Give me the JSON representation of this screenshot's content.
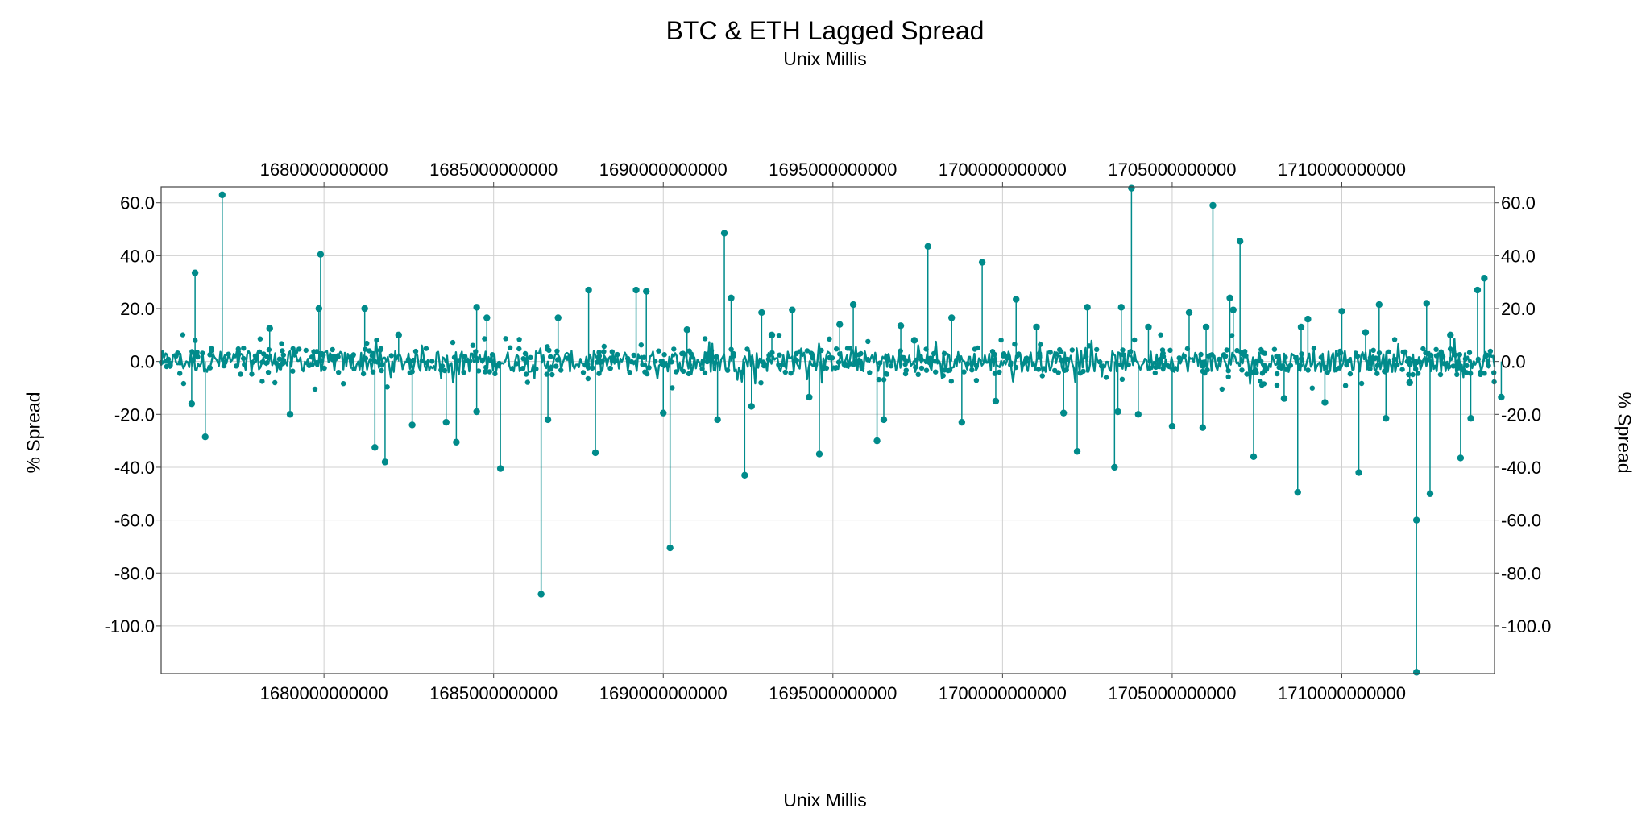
{
  "chart_data": {
    "type": "scatter",
    "title": "BTC & ETH Lagged Spread",
    "subtitle": "Unix Millis",
    "xlabel": "Unix Millis",
    "ylabel": "% Spread",
    "xlim": [
      1675200000000,
      1714500000000
    ],
    "ylim": [
      -118,
      66
    ],
    "x_ticks": [
      "1680000000000",
      "1685000000000",
      "1690000000000",
      "1695000000000",
      "1700000000000",
      "1705000000000",
      "1710000000000"
    ],
    "y_ticks": [
      "60.0",
      "40.0",
      "20.0",
      "0.0",
      "-20.0",
      "-40.0",
      "-60.0",
      "-80.0",
      "-100.0"
    ],
    "grid": true,
    "color": "#008b8b",
    "series": [
      {
        "noise_band": [
          -4,
          4
        ],
        "points": [
          {
            "x": 1676200000000,
            "y": 33.5
          },
          {
            "x": 1676500000000,
            "y": -28.5
          },
          {
            "x": 1677000000000,
            "y": 63.0
          },
          {
            "x": 1676100000000,
            "y": -16.0
          },
          {
            "x": 1678400000000,
            "y": 12.5
          },
          {
            "x": 1679000000000,
            "y": -20.0
          },
          {
            "x": 1679900000000,
            "y": 40.5
          },
          {
            "x": 1679850000000,
            "y": 20.0
          },
          {
            "x": 1681200000000,
            "y": 20.0
          },
          {
            "x": 1681500000000,
            "y": -32.5
          },
          {
            "x": 1681800000000,
            "y": -38.0
          },
          {
            "x": 1682200000000,
            "y": 10.0
          },
          {
            "x": 1682600000000,
            "y": -24.0
          },
          {
            "x": 1683600000000,
            "y": -23.0
          },
          {
            "x": 1683900000000,
            "y": -30.5
          },
          {
            "x": 1684500000000,
            "y": 20.5
          },
          {
            "x": 1684500000000,
            "y": -19.0
          },
          {
            "x": 1684800000000,
            "y": 16.5
          },
          {
            "x": 1685200000000,
            "y": -40.5
          },
          {
            "x": 1686400000000,
            "y": -88.0
          },
          {
            "x": 1686600000000,
            "y": -22.0
          },
          {
            "x": 1686900000000,
            "y": 16.5
          },
          {
            "x": 1687800000000,
            "y": 27.0
          },
          {
            "x": 1688000000000,
            "y": -34.5
          },
          {
            "x": 1689200000000,
            "y": 27.0
          },
          {
            "x": 1689500000000,
            "y": 26.5
          },
          {
            "x": 1690000000000,
            "y": -19.5
          },
          {
            "x": 1690200000000,
            "y": -70.5
          },
          {
            "x": 1690700000000,
            "y": 12.0
          },
          {
            "x": 1691600000000,
            "y": -22.0
          },
          {
            "x": 1691800000000,
            "y": 48.5
          },
          {
            "x": 1692000000000,
            "y": 24.0
          },
          {
            "x": 1692400000000,
            "y": -43.0
          },
          {
            "x": 1692600000000,
            "y": -17.0
          },
          {
            "x": 1692900000000,
            "y": 18.5
          },
          {
            "x": 1693200000000,
            "y": 10.0
          },
          {
            "x": 1693800000000,
            "y": 19.5
          },
          {
            "x": 1694300000000,
            "y": -13.5
          },
          {
            "x": 1694600000000,
            "y": -35.0
          },
          {
            "x": 1695200000000,
            "y": 14.0
          },
          {
            "x": 1695600000000,
            "y": 21.5
          },
          {
            "x": 1696300000000,
            "y": -30.0
          },
          {
            "x": 1696500000000,
            "y": -22.0
          },
          {
            "x": 1697000000000,
            "y": 13.5
          },
          {
            "x": 1697400000000,
            "y": 8.0
          },
          {
            "x": 1697800000000,
            "y": 43.5
          },
          {
            "x": 1698500000000,
            "y": 16.5
          },
          {
            "x": 1698800000000,
            "y": -23.0
          },
          {
            "x": 1699400000000,
            "y": 37.5
          },
          {
            "x": 1699800000000,
            "y": -15.0
          },
          {
            "x": 1700400000000,
            "y": 23.5
          },
          {
            "x": 1701000000000,
            "y": 13.0
          },
          {
            "x": 1701800000000,
            "y": -19.5
          },
          {
            "x": 1702200000000,
            "y": -34.0
          },
          {
            "x": 1702500000000,
            "y": 20.5
          },
          {
            "x": 1703300000000,
            "y": -40.0
          },
          {
            "x": 1703400000000,
            "y": -19.0
          },
          {
            "x": 1703500000000,
            "y": 20.5
          },
          {
            "x": 1703800000000,
            "y": 65.5
          },
          {
            "x": 1704000000000,
            "y": -20.0
          },
          {
            "x": 1704300000000,
            "y": 13.0
          },
          {
            "x": 1705000000000,
            "y": -24.5
          },
          {
            "x": 1705500000000,
            "y": 18.5
          },
          {
            "x": 1705900000000,
            "y": -25.0
          },
          {
            "x": 1706000000000,
            "y": 13.0
          },
          {
            "x": 1706200000000,
            "y": 59.0
          },
          {
            "x": 1706700000000,
            "y": 24.0
          },
          {
            "x": 1706800000000,
            "y": 19.5
          },
          {
            "x": 1707000000000,
            "y": 45.5
          },
          {
            "x": 1707400000000,
            "y": -36.0
          },
          {
            "x": 1708300000000,
            "y": -14.0
          },
          {
            "x": 1708700000000,
            "y": -49.5
          },
          {
            "x": 1708800000000,
            "y": 13.0
          },
          {
            "x": 1709000000000,
            "y": 16.0
          },
          {
            "x": 1709500000000,
            "y": -15.5
          },
          {
            "x": 1710000000000,
            "y": 19.0
          },
          {
            "x": 1710500000000,
            "y": -42.0
          },
          {
            "x": 1710700000000,
            "y": 11.0
          },
          {
            "x": 1711100000000,
            "y": 21.5
          },
          {
            "x": 1711300000000,
            "y": -21.5
          },
          {
            "x": 1712000000000,
            "y": -8.0
          },
          {
            "x": 1712200000000,
            "y": -117.5
          },
          {
            "x": 1712200000000,
            "y": -60.0
          },
          {
            "x": 1712500000000,
            "y": 22.0
          },
          {
            "x": 1712600000000,
            "y": -50.0
          },
          {
            "x": 1713200000000,
            "y": 10.0
          },
          {
            "x": 1713500000000,
            "y": -36.5
          },
          {
            "x": 1713800000000,
            "y": -21.5
          },
          {
            "x": 1714000000000,
            "y": 27.0
          },
          {
            "x": 1714200000000,
            "y": 31.5
          },
          {
            "x": 1714700000000,
            "y": -13.5
          }
        ]
      }
    ]
  }
}
